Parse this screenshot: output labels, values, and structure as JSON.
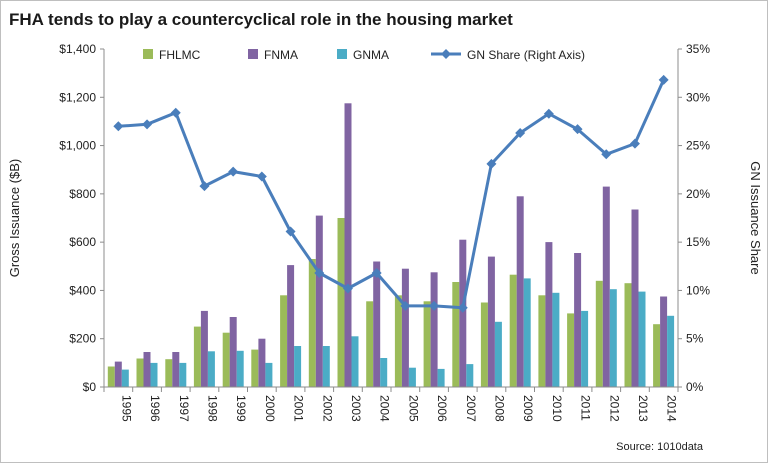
{
  "chart_data": {
    "type": "bar",
    "title": "FHA tends to play a countercyclical role in the housing market",
    "source": "Source: 1010data",
    "categories": [
      "1995",
      "1996",
      "1997",
      "1998",
      "1999",
      "2000",
      "2001",
      "2002",
      "2003",
      "2004",
      "2005",
      "2006",
      "2007",
      "2008",
      "2009",
      "2010",
      "2011",
      "2012",
      "2013",
      "2014"
    ],
    "series": [
      {
        "name": "FHLMC",
        "axis": "left",
        "kind": "bar",
        "color": "#9bbb59",
        "values": [
          85,
          118,
          115,
          250,
          225,
          155,
          380,
          530,
          700,
          355,
          380,
          355,
          435,
          350,
          465,
          380,
          305,
          440,
          430,
          260
        ]
      },
      {
        "name": "FNMA",
        "axis": "left",
        "kind": "bar",
        "color": "#8064a2",
        "values": [
          105,
          145,
          145,
          315,
          290,
          200,
          505,
          710,
          1175,
          520,
          490,
          475,
          610,
          540,
          790,
          600,
          555,
          830,
          735,
          375
        ]
      },
      {
        "name": "GNMA",
        "axis": "left",
        "kind": "bar",
        "color": "#4bacc6",
        "values": [
          72,
          100,
          100,
          148,
          150,
          100,
          170,
          170,
          210,
          120,
          80,
          75,
          95,
          270,
          450,
          390,
          315,
          405,
          395,
          295
        ]
      },
      {
        "name": "GN Share (Right Axis)",
        "axis": "right",
        "kind": "line",
        "color": "#4a7ebb",
        "values": [
          0.27,
          0.272,
          0.284,
          0.208,
          0.223,
          0.218,
          0.161,
          0.118,
          0.102,
          0.118,
          0.084,
          0.084,
          0.082,
          0.231,
          0.263,
          0.283,
          0.267,
          0.241,
          0.252,
          0.318
        ]
      }
    ],
    "y_left": {
      "label": "Gross Issuance ($B)",
      "min": 0,
      "max": 1400,
      "ticks": [
        "$0",
        "$200",
        "$400",
        "$600",
        "$800",
        "$1,000",
        "$1,200",
        "$1,400"
      ]
    },
    "y_right": {
      "label": "GN Issuance Share",
      "min": 0,
      "max": 0.35,
      "ticks": [
        "0%",
        "5%",
        "10%",
        "15%",
        "20%",
        "25%",
        "30%",
        "35%"
      ]
    },
    "legend_position": "top",
    "grid": false
  }
}
